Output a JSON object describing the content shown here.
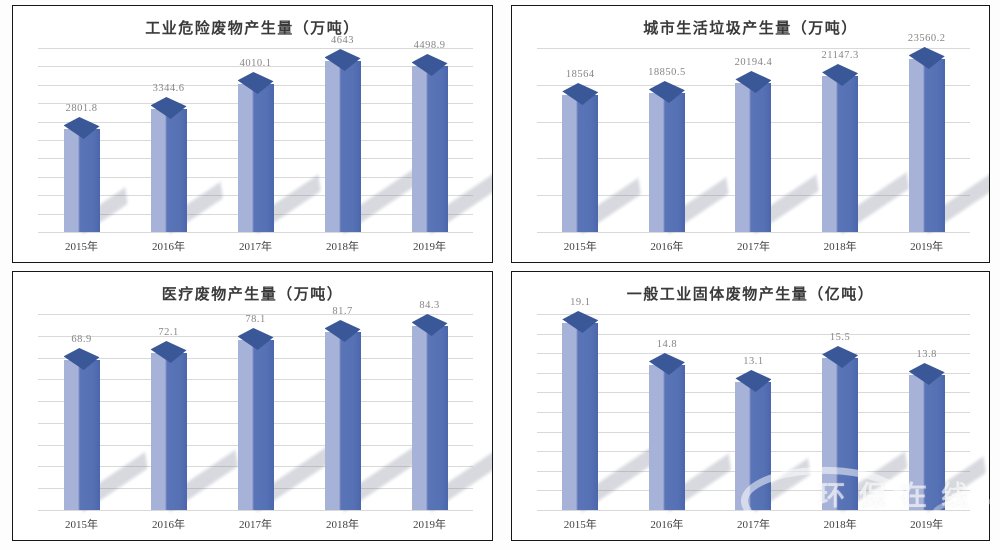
{
  "watermark": {
    "label": "环保在线"
  },
  "colors": {
    "bar_left_face": "#a7b2d8",
    "bar_right_face": "#5571b4",
    "bar_top_face": "#3a5797",
    "shadow": "rgba(123,130,148,0.30)",
    "gridline": "#d9d9d9",
    "value_label": "#868686",
    "year_label": "#3f3f3f",
    "panel_border": "#161616"
  },
  "chart_data": [
    {
      "type": "bar",
      "title": "工业危险废物产生量（万吨）",
      "categories": [
        "2015年",
        "2016年",
        "2017年",
        "2018年",
        "2019年"
      ],
      "values": [
        2801.8,
        3344.6,
        4010.1,
        4643,
        4498.9
      ],
      "value_labels": [
        "2801.8",
        "3344.6",
        "4010.1",
        "4643",
        "4498.9"
      ],
      "xlabel": "",
      "ylabel": "",
      "ylim": [
        0,
        5000
      ],
      "gridlines": 11,
      "grid": true,
      "legend": false
    },
    {
      "type": "bar",
      "title": "城市生活垃圾产生量（万吨）",
      "categories": [
        "2015年",
        "2016年",
        "2017年",
        "2018年",
        "2019年"
      ],
      "values": [
        18564,
        18850.5,
        20194.4,
        21147.3,
        23560.2
      ],
      "value_labels": [
        "18564",
        "18850.5",
        "20194.4",
        "21147.3",
        "23560.2"
      ],
      "xlabel": "",
      "ylabel": "",
      "ylim": [
        0,
        25000
      ],
      "gridlines": 6,
      "grid": true,
      "legend": false
    },
    {
      "type": "bar",
      "title": "医疗废物产生量（万吨）",
      "categories": [
        "2015年",
        "2016年",
        "2017年",
        "2018年",
        "2019年"
      ],
      "values": [
        68.9,
        72.1,
        78.1,
        81.7,
        84.3
      ],
      "value_labels": [
        "68.9",
        "72.1",
        "78.1",
        "81.7",
        "84.3"
      ],
      "xlabel": "",
      "ylabel": "",
      "ylim": [
        0,
        90
      ],
      "gridlines": 10,
      "grid": true,
      "legend": false
    },
    {
      "type": "bar",
      "title": "一般工业固体废物产生量（亿吨）",
      "categories": [
        "2015年",
        "2016年",
        "2017年",
        "2018年",
        "2019年"
      ],
      "values": [
        19.1,
        14.8,
        13.1,
        15.5,
        13.8
      ],
      "value_labels": [
        "19.1",
        "14.8",
        "13.1",
        "15.5",
        "13.8"
      ],
      "xlabel": "",
      "ylabel": "",
      "ylim": [
        0,
        20
      ],
      "gridlines": 11,
      "grid": true,
      "legend": false
    }
  ]
}
